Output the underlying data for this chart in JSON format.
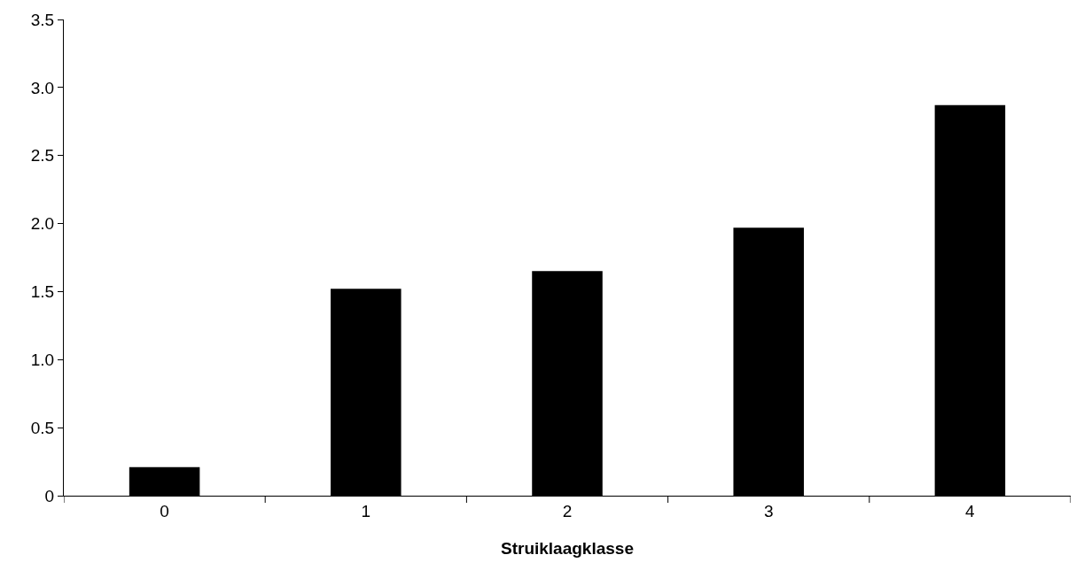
{
  "chart_data": {
    "type": "bar",
    "xlabel": "Struiklaagklasse",
    "categories": [
      "0",
      "1",
      "2",
      "3",
      "4"
    ],
    "values": [
      0.21,
      1.52,
      1.65,
      1.97,
      2.87
    ],
    "color": "#000000",
    "ylim": [
      0,
      3.5
    ],
    "yticks": [
      0,
      0.5,
      {
        "value": 1,
        "label": "1.0"
      },
      1.5,
      {
        "value": 2,
        "label": "2.0"
      },
      2.5,
      {
        "value": 3,
        "label": "3.0"
      },
      3.5
    ]
  }
}
